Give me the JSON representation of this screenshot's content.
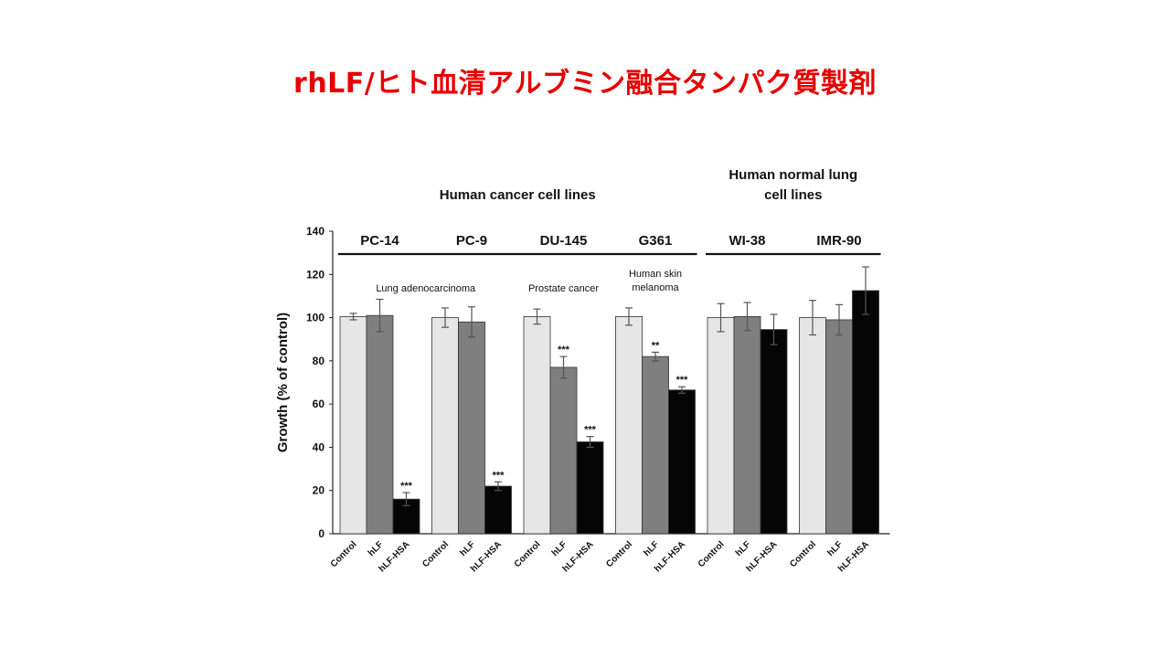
{
  "slide": {
    "title": "rhLF/ヒト血清アルブミン融合タンパク質製剤"
  },
  "chart_data": {
    "type": "bar",
    "ylabel": "Growth (% of control)",
    "ylim": [
      0,
      140
    ],
    "yticks": [
      0,
      20,
      40,
      60,
      80,
      100,
      120,
      140
    ],
    "series_names": [
      "Control",
      "hLF",
      "hLF-HSA"
    ],
    "colors": {
      "Control": "#e6e6e6",
      "hLF": "#7f7f7f",
      "hLF-HSA": "#050505"
    },
    "supergroups": [
      {
        "label": "Human cancer cell lines",
        "first_group": 0,
        "last_group": 3
      },
      {
        "label_lines": [
          "Human normal lung",
          "cell lines"
        ],
        "first_group": 4,
        "last_group": 5
      }
    ],
    "groups": [
      {
        "name": "PC-14",
        "annotation": [
          "Lung adenocarcinoma"
        ],
        "annotation_span": [
          0,
          1
        ],
        "bars": [
          {
            "series": "Control",
            "value": 100.5,
            "error": 1.5,
            "sig": ""
          },
          {
            "series": "hLF",
            "value": 101,
            "error": 7.5,
            "sig": ""
          },
          {
            "series": "hLF-HSA",
            "value": 16,
            "error": 3,
            "sig": "***"
          }
        ]
      },
      {
        "name": "PC-9",
        "bars": [
          {
            "series": "Control",
            "value": 100,
            "error": 4.5,
            "sig": ""
          },
          {
            "series": "hLF",
            "value": 98,
            "error": 7,
            "sig": ""
          },
          {
            "series": "hLF-HSA",
            "value": 22,
            "error": 2,
            "sig": "***"
          }
        ]
      },
      {
        "name": "DU-145",
        "annotation": [
          "Prostate cancer"
        ],
        "annotation_span": [
          2,
          2
        ],
        "bars": [
          {
            "series": "Control",
            "value": 100.5,
            "error": 3.5,
            "sig": ""
          },
          {
            "series": "hLF",
            "value": 77,
            "error": 5,
            "sig": "***"
          },
          {
            "series": "hLF-HSA",
            "value": 42.5,
            "error": 2.5,
            "sig": "***"
          }
        ]
      },
      {
        "name": "G361",
        "annotation": [
          "Human skin",
          "melanoma"
        ],
        "annotation_span": [
          3,
          3
        ],
        "bars": [
          {
            "series": "Control",
            "value": 100.5,
            "error": 4,
            "sig": ""
          },
          {
            "series": "hLF",
            "value": 82,
            "error": 2,
            "sig": "**"
          },
          {
            "series": "hLF-HSA",
            "value": 66.5,
            "error": 1.5,
            "sig": "***"
          }
        ]
      },
      {
        "name": "WI-38",
        "bars": [
          {
            "series": "Control",
            "value": 100,
            "error": 6.5,
            "sig": ""
          },
          {
            "series": "hLF",
            "value": 100.5,
            "error": 6.5,
            "sig": ""
          },
          {
            "series": "hLF-HSA",
            "value": 94.5,
            "error": 7,
            "sig": ""
          }
        ]
      },
      {
        "name": "IMR-90",
        "bars": [
          {
            "series": "Control",
            "value": 100,
            "error": 8,
            "sig": ""
          },
          {
            "series": "hLF",
            "value": 99,
            "error": 7,
            "sig": ""
          },
          {
            "series": "hLF-HSA",
            "value": 112.5,
            "error": 11,
            "sig": ""
          }
        ]
      }
    ]
  }
}
